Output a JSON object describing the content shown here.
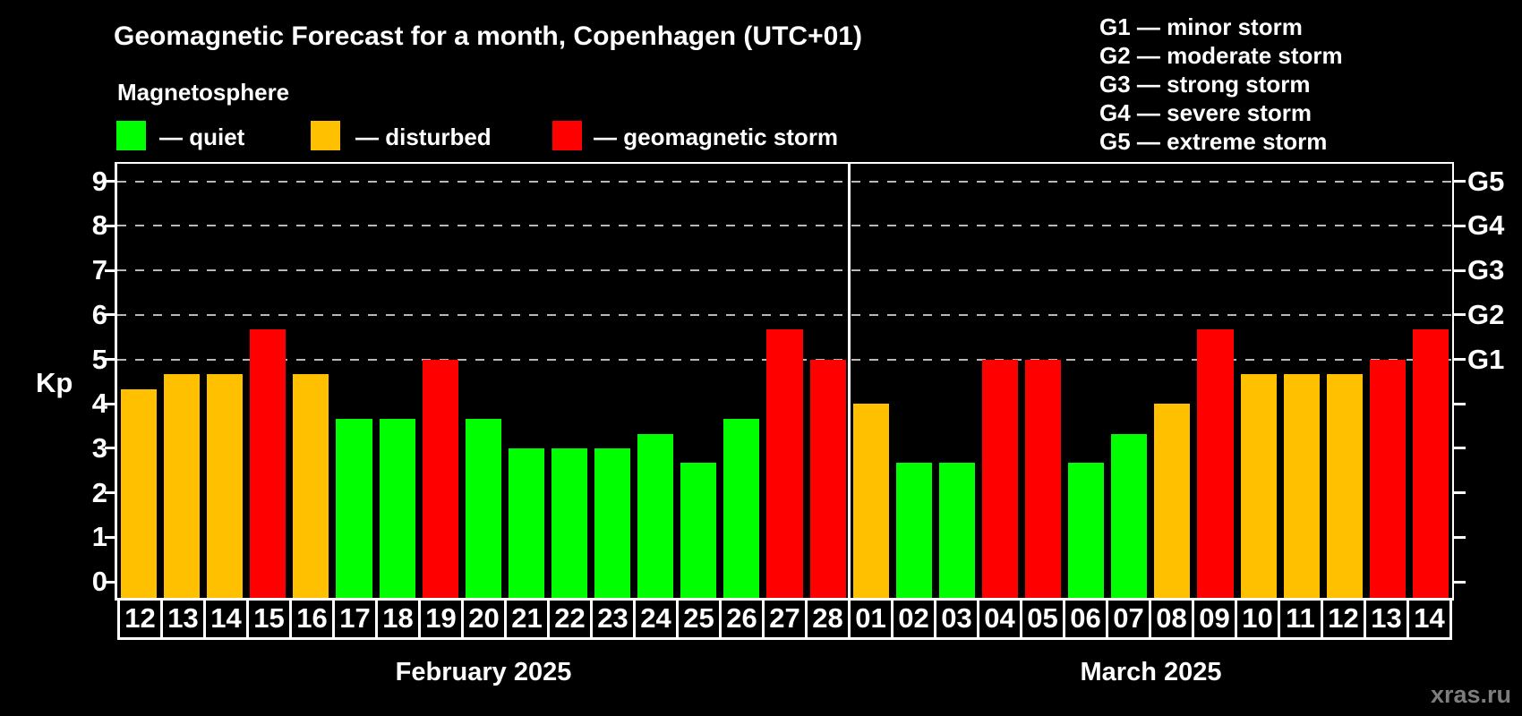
{
  "title": "Geomagnetic Forecast for a month, Copenhagen (UTC+01)",
  "legend": {
    "heading": "Magnetosphere",
    "items": [
      {
        "key": "quiet",
        "label": "— quiet",
        "color": "#00ff00"
      },
      {
        "key": "disturbed",
        "label": "— disturbed",
        "color": "#ffc000"
      },
      {
        "key": "storm",
        "label": "— geomagnetic storm",
        "color": "#ff0000"
      }
    ]
  },
  "g_legend": [
    "G1 — minor storm",
    "G2 — moderate storm",
    "G3 — strong storm",
    "G4 — severe storm",
    "G5 — extreme storm"
  ],
  "watermark": "xras.ru",
  "colors": {
    "background": "#000000",
    "axis": "#ffffff",
    "gridline": "#b8b8b8",
    "quiet": "#00ff00",
    "disturbed": "#ffc000",
    "storm": "#ff0000",
    "watermark": "#7d7d7d"
  },
  "chart_data": {
    "type": "bar",
    "title": "Geomagnetic Forecast for a month, Copenhagen (UTC+01)",
    "ylabel": "Kp",
    "ylim": [
      0,
      9.4
    ],
    "y_ticks": [
      0,
      1,
      2,
      3,
      4,
      5,
      6,
      7,
      8,
      9
    ],
    "gridlines_at_kp": [
      5,
      6,
      7,
      8,
      9
    ],
    "grid_style": "dashed",
    "legend_position": "top-left",
    "right_axis": [
      {
        "kp": 5,
        "label": "G1"
      },
      {
        "kp": 6,
        "label": "G2"
      },
      {
        "kp": 7,
        "label": "G3"
      },
      {
        "kp": 8,
        "label": "G4"
      },
      {
        "kp": 9,
        "label": "G5"
      }
    ],
    "months": [
      {
        "label": "February 2025",
        "days": [
          {
            "day": "12",
            "kp": 4.33,
            "level": "disturbed"
          },
          {
            "day": "13",
            "kp": 4.67,
            "level": "disturbed"
          },
          {
            "day": "14",
            "kp": 4.67,
            "level": "disturbed"
          },
          {
            "day": "15",
            "kp": 5.67,
            "level": "storm"
          },
          {
            "day": "16",
            "kp": 4.67,
            "level": "disturbed"
          },
          {
            "day": "17",
            "kp": 3.67,
            "level": "quiet"
          },
          {
            "day": "18",
            "kp": 3.67,
            "level": "quiet"
          },
          {
            "day": "19",
            "kp": 5.0,
            "level": "storm"
          },
          {
            "day": "20",
            "kp": 3.67,
            "level": "quiet"
          },
          {
            "day": "21",
            "kp": 3.0,
            "level": "quiet"
          },
          {
            "day": "22",
            "kp": 3.0,
            "level": "quiet"
          },
          {
            "day": "23",
            "kp": 3.0,
            "level": "quiet"
          },
          {
            "day": "24",
            "kp": 3.33,
            "level": "quiet"
          },
          {
            "day": "25",
            "kp": 2.67,
            "level": "quiet"
          },
          {
            "day": "26",
            "kp": 3.67,
            "level": "quiet"
          },
          {
            "day": "27",
            "kp": 5.67,
            "level": "storm"
          },
          {
            "day": "28",
            "kp": 5.0,
            "level": "storm"
          }
        ]
      },
      {
        "label": "March 2025",
        "days": [
          {
            "day": "01",
            "kp": 4.0,
            "level": "disturbed"
          },
          {
            "day": "02",
            "kp": 2.67,
            "level": "quiet"
          },
          {
            "day": "03",
            "kp": 2.67,
            "level": "quiet"
          },
          {
            "day": "04",
            "kp": 5.0,
            "level": "storm"
          },
          {
            "day": "05",
            "kp": 5.0,
            "level": "storm"
          },
          {
            "day": "06",
            "kp": 2.67,
            "level": "quiet"
          },
          {
            "day": "07",
            "kp": 3.33,
            "level": "quiet"
          },
          {
            "day": "08",
            "kp": 4.0,
            "level": "disturbed"
          },
          {
            "day": "09",
            "kp": 5.67,
            "level": "storm"
          },
          {
            "day": "10",
            "kp": 4.67,
            "level": "disturbed"
          },
          {
            "day": "11",
            "kp": 4.67,
            "level": "disturbed"
          },
          {
            "day": "12",
            "kp": 4.67,
            "level": "disturbed"
          },
          {
            "day": "13",
            "kp": 5.0,
            "level": "storm"
          },
          {
            "day": "14",
            "kp": 5.67,
            "level": "storm"
          }
        ]
      }
    ]
  }
}
